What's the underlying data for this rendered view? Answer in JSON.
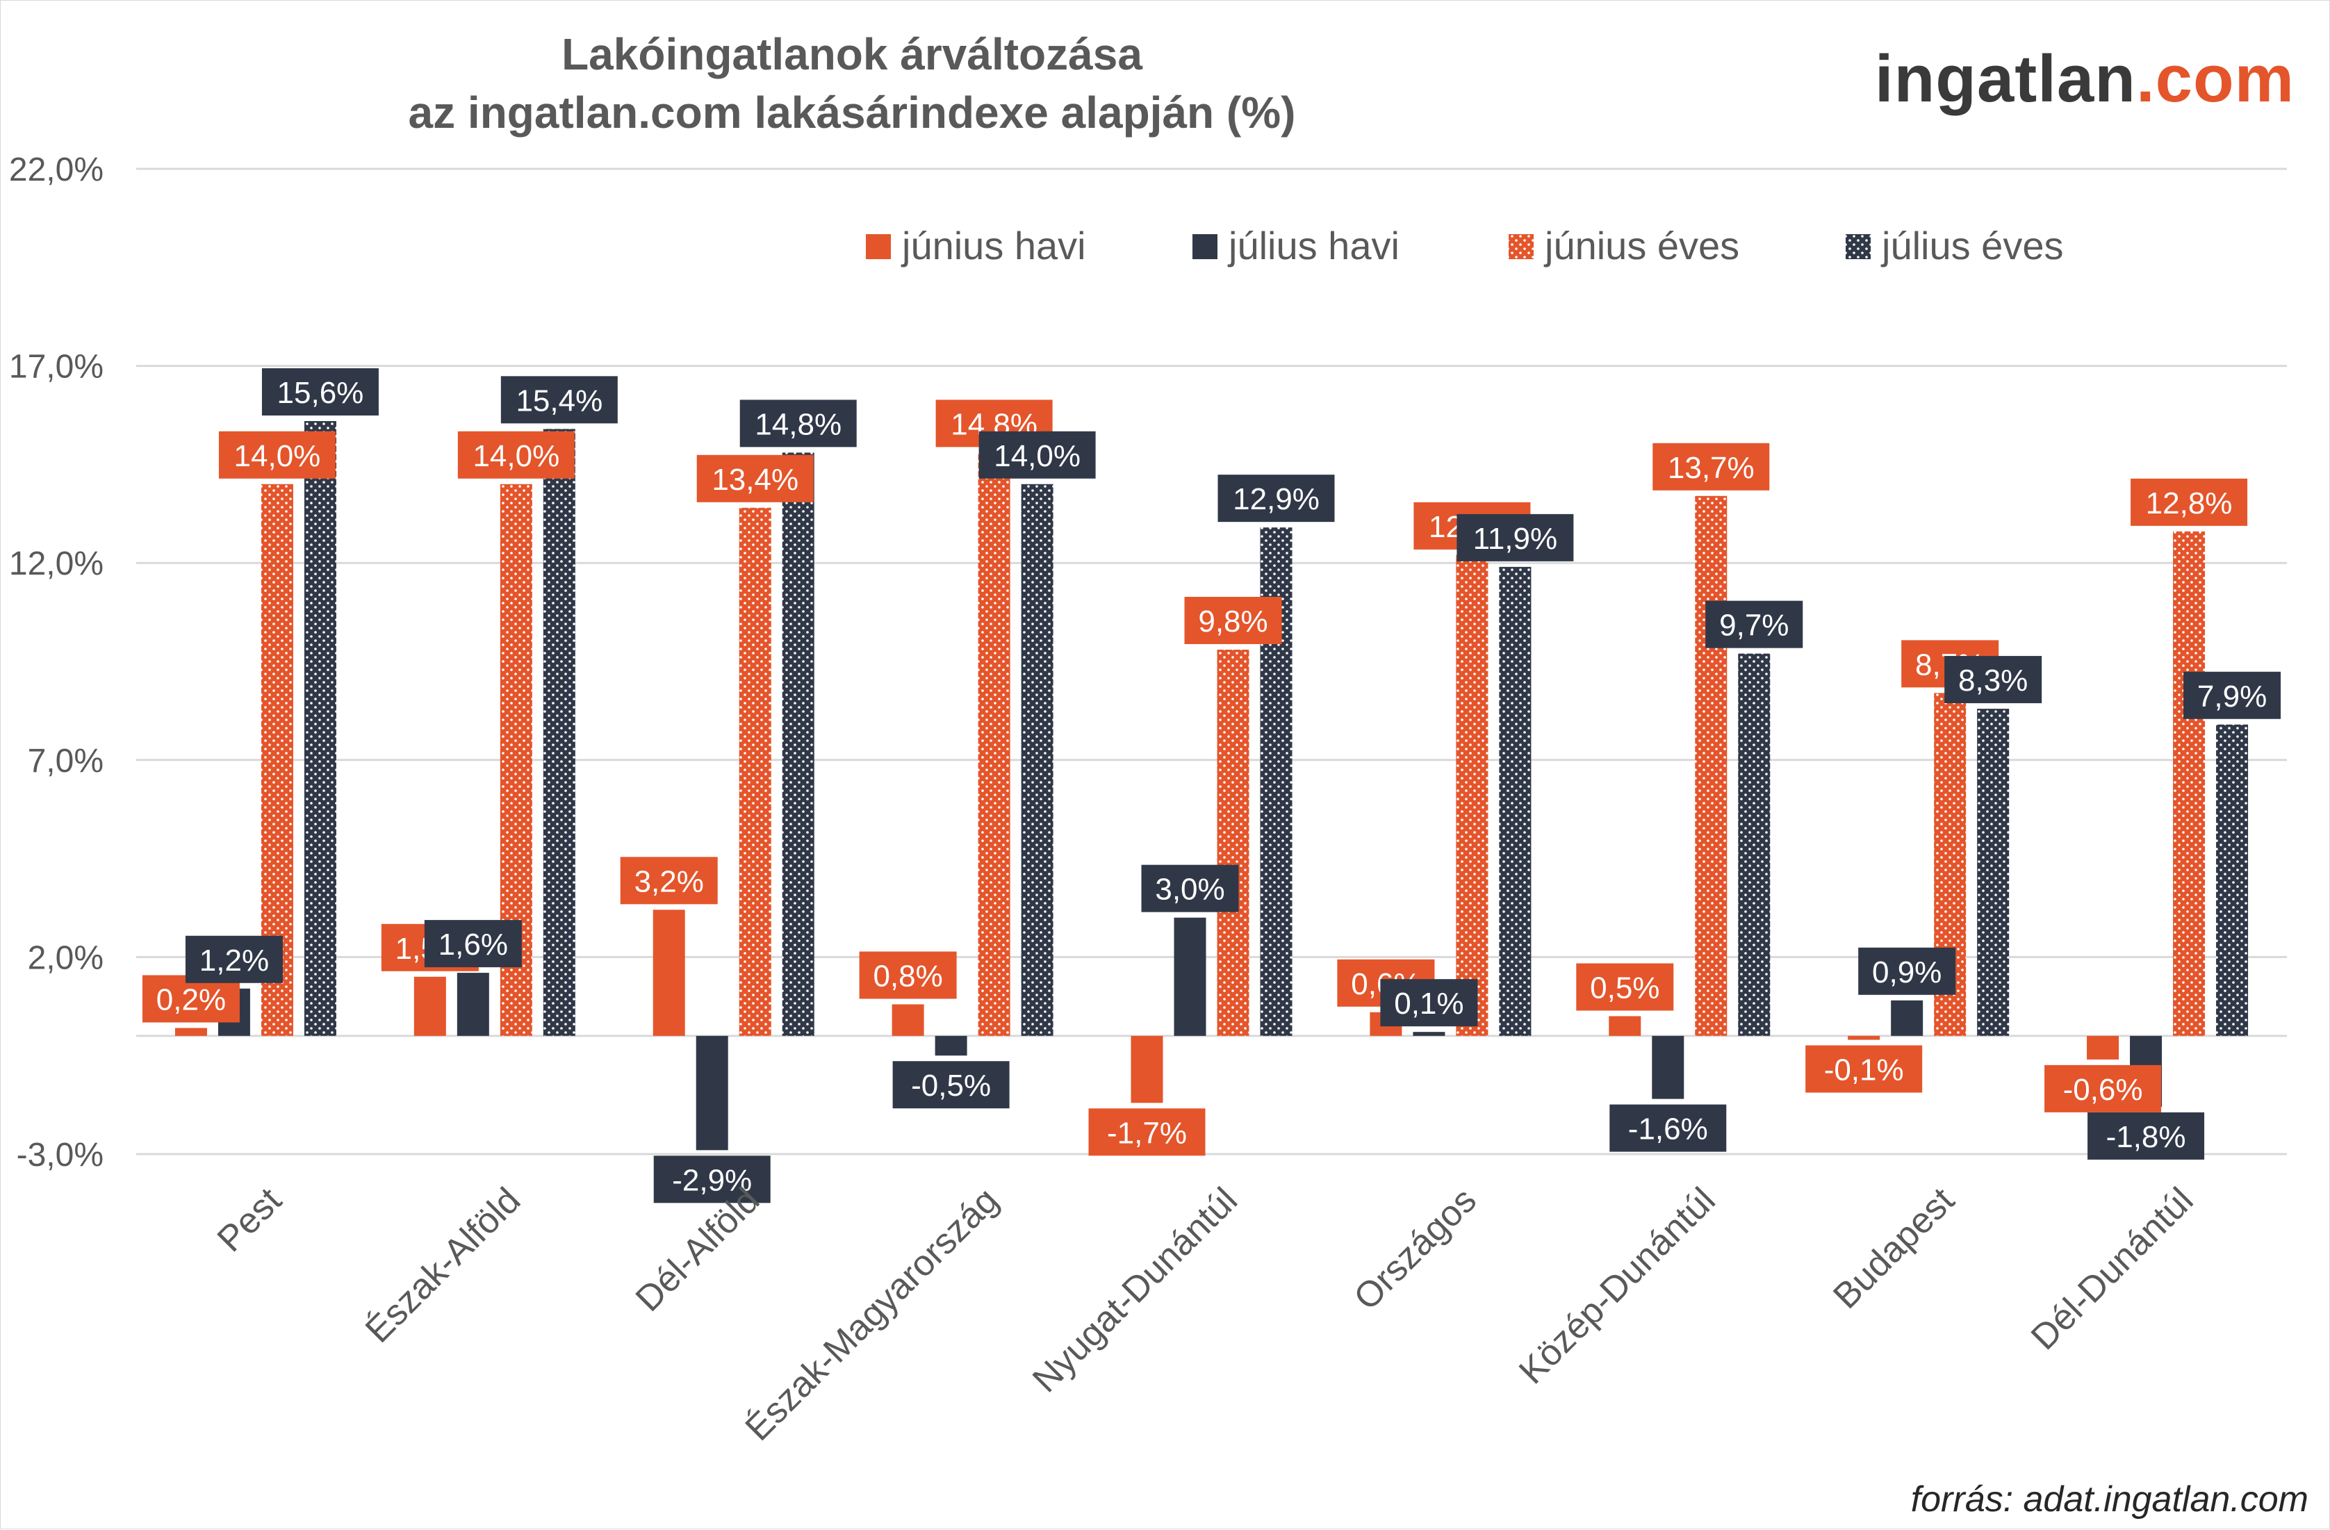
{
  "header": {
    "title_line1": "Lakóingatlanok árváltozása",
    "title_line2": "az ingatlan.com lakásárindexe alapján (%)",
    "logo_part1": "ingatlan",
    "logo_part2": ".com"
  },
  "footer": {
    "source": "forrás: adat.ingatlan.com"
  },
  "colors": {
    "orange": "#e4552b",
    "navy": "#303848",
    "grid": "#d9d9d9",
    "axis_text": "#595959"
  },
  "chart_data": {
    "type": "bar",
    "categories": [
      "Pest",
      "Észak-Alföld",
      "Dél-Alföld",
      "Észak-Magyarország",
      "Nyugat-Dunántúl",
      "Országos",
      "Közép-Dunántúl",
      "Budapest",
      "Dél-Dunántúl"
    ],
    "series": [
      {
        "name": "június havi",
        "color": "#e4552b",
        "pattern": "solid",
        "values": [
          0.2,
          1.5,
          3.2,
          0.8,
          -1.7,
          0.6,
          0.5,
          -0.1,
          -0.6
        ],
        "labels": [
          "0,2%",
          "1,5%",
          "3,2%",
          "0,8%",
          "-1,7%",
          "0,6%",
          "0,5%",
          "-0,1%",
          "-0,6%"
        ]
      },
      {
        "name": "július havi",
        "color": "#303848",
        "pattern": "solid",
        "values": [
          1.2,
          1.6,
          -2.9,
          -0.5,
          3.0,
          0.1,
          -1.6,
          0.9,
          -1.8
        ],
        "labels": [
          "1,2%",
          "1,6%",
          "-2,9%",
          "-0,5%",
          "3,0%",
          "0,1%",
          "-1,6%",
          "0,9%",
          "-1,8%"
        ]
      },
      {
        "name": "június éves",
        "color": "#e4552b",
        "pattern": "dotted",
        "values": [
          14.0,
          14.0,
          13.4,
          14.8,
          9.8,
          12.2,
          13.7,
          8.7,
          12.8
        ],
        "labels": [
          "14,0%",
          "14,0%",
          "13,4%",
          "14,8%",
          "9,8%",
          "12,2%",
          "13,7%",
          "8,7%",
          "12,8%"
        ]
      },
      {
        "name": "július éves",
        "color": "#303848",
        "pattern": "dotted",
        "values": [
          15.6,
          15.4,
          14.8,
          14.0,
          12.9,
          11.9,
          9.7,
          8.3,
          7.9
        ],
        "labels": [
          "15,6%",
          "15,4%",
          "14,8%",
          "14,0%",
          "12,9%",
          "11,9%",
          "9,7%",
          "8,3%",
          "7,9%"
        ]
      }
    ],
    "yticks": [
      "22,0%",
      "17,0%",
      "12,0%",
      "7,0%",
      "2,0%",
      "-3,0%"
    ],
    "ytick_values": [
      22,
      17,
      12,
      7,
      2,
      -3
    ],
    "ylim": [
      -3,
      22
    ],
    "grid": true,
    "legend_position": "top-right",
    "data_labels": true
  }
}
